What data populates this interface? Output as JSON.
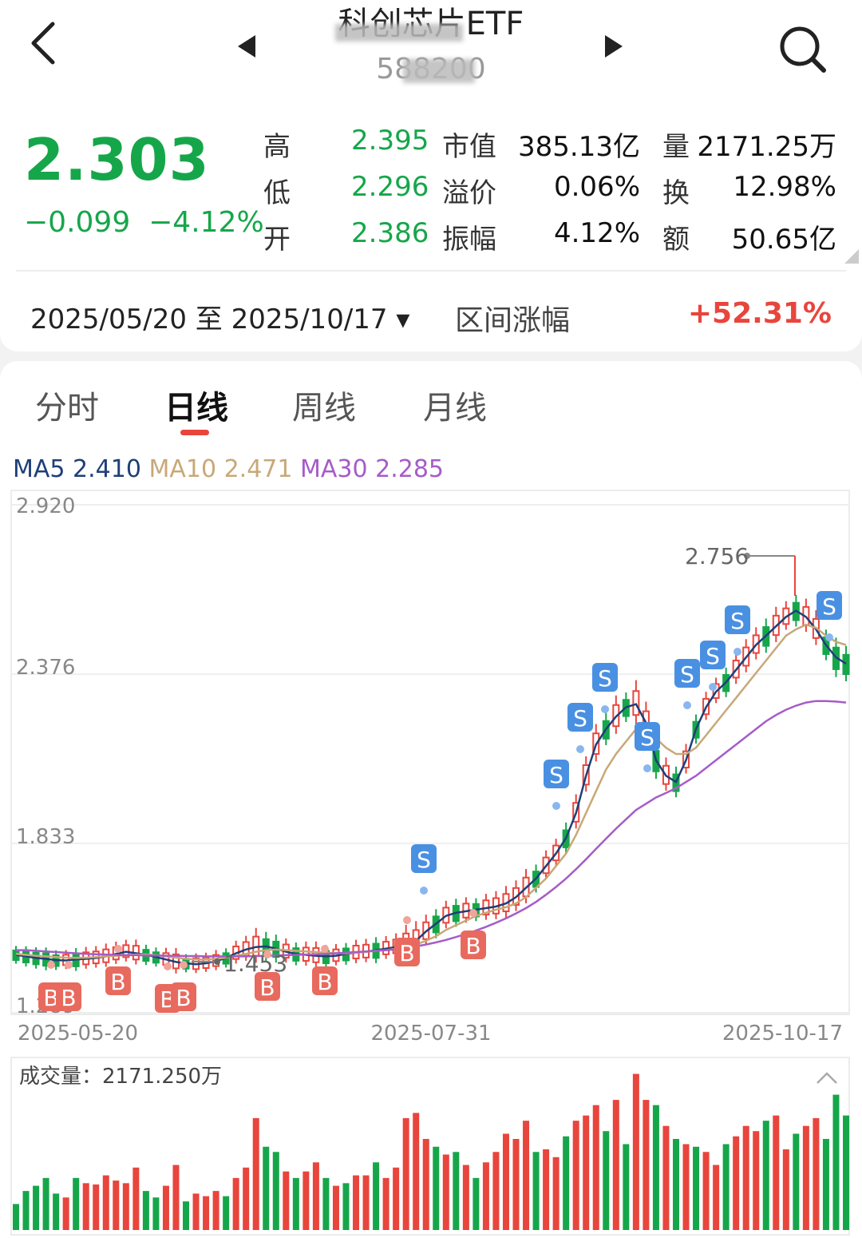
{
  "header": {
    "title": "科创芯片ETF",
    "code": "588200"
  },
  "quote": {
    "price": "2.303",
    "change": "−0.099",
    "change_pct": "−4.12%",
    "rows": [
      {
        "label": "高",
        "value": "2.395",
        "label2": "市值",
        "value2": "385.13亿",
        "label3": "量",
        "value3": "2171.25万"
      },
      {
        "label": "低",
        "value": "2.296",
        "label2": "溢价",
        "value2": "0.06%",
        "label3": "换",
        "value3": "12.98%"
      },
      {
        "label": "开",
        "value": "2.386",
        "label2": "振幅",
        "value2": "4.12%",
        "label3": "额",
        "value3": "50.65亿"
      }
    ]
  },
  "range": {
    "dates": "2025/05/20 至 2025/10/17",
    "dropdown": "▾",
    "label": "区间涨幅",
    "value": "+52.31%"
  },
  "tabs": [
    "分时",
    "日线",
    "周线",
    "月线"
  ],
  "active_tab": "日线",
  "ma": {
    "ma5": "MA5 2.410",
    "ma10": "MA10 2.471",
    "ma30": "MA30 2.285"
  },
  "colors": {
    "up": "#e8453c",
    "down": "#16a64a",
    "ma5": "#1e3f78",
    "ma10": "#c8a878",
    "ma30": "#a65cc8",
    "signal_s": "#4a90e2",
    "signal_b": "#e86a5e"
  },
  "chart_data": [
    {
      "type": "candlestick",
      "y_ticks": [
        "2.920",
        "2.376",
        "1.833",
        "1.289"
      ],
      "ylim": [
        1.289,
        2.92
      ],
      "x_ticks": [
        "2025-05-20",
        "2025-07-31",
        "2025-10-17"
      ],
      "annotations": {
        "high": "2.756",
        "low": "1.453"
      },
      "signal_labels": {
        "buy": "B",
        "sell": "S"
      },
      "series": [
        {
          "name": "MA5",
          "values": [
            1.475,
            1.47,
            1.465,
            1.462,
            1.458,
            1.457,
            1.46,
            1.462,
            1.465,
            1.47,
            1.478,
            1.485,
            1.48,
            1.475,
            1.468,
            1.46,
            1.452,
            1.448,
            1.445,
            1.448,
            1.455,
            1.465,
            1.48,
            1.492,
            1.5,
            1.502,
            1.495,
            1.485,
            1.478,
            1.475,
            1.472,
            1.47,
            1.472,
            1.478,
            1.482,
            1.485,
            1.49,
            1.495,
            1.5,
            1.51,
            1.52,
            1.55,
            1.575,
            1.6,
            1.61,
            1.615,
            1.62,
            1.625,
            1.63,
            1.64,
            1.66,
            1.69,
            1.72,
            1.76,
            1.8,
            1.85,
            1.93,
            2.05,
            2.15,
            2.2,
            2.24,
            2.27,
            2.28,
            2.22,
            2.1,
            2.05,
            2.03,
            2.1,
            2.2,
            2.27,
            2.32,
            2.35,
            2.39,
            2.43,
            2.47,
            2.5,
            2.53,
            2.56,
            2.58,
            2.56,
            2.52,
            2.47,
            2.43,
            2.41
          ]
        },
        {
          "name": "MA10",
          "values": [
            1.478,
            1.475,
            1.472,
            1.47,
            1.468,
            1.466,
            1.465,
            1.466,
            1.468,
            1.47,
            1.472,
            1.474,
            1.476,
            1.476,
            1.474,
            1.47,
            1.466,
            1.462,
            1.46,
            1.46,
            1.462,
            1.466,
            1.472,
            1.478,
            1.485,
            1.49,
            1.492,
            1.49,
            1.488,
            1.486,
            1.484,
            1.482,
            1.48,
            1.48,
            1.482,
            1.485,
            1.488,
            1.49,
            1.495,
            1.5,
            1.508,
            1.52,
            1.535,
            1.555,
            1.57,
            1.585,
            1.6,
            1.61,
            1.62,
            1.628,
            1.64,
            1.66,
            1.69,
            1.72,
            1.76,
            1.8,
            1.86,
            1.93,
            2.0,
            2.07,
            2.12,
            2.16,
            2.2,
            2.2,
            2.17,
            2.14,
            2.12,
            2.12,
            2.14,
            2.18,
            2.22,
            2.26,
            2.3,
            2.34,
            2.38,
            2.42,
            2.46,
            2.5,
            2.52,
            2.535,
            2.525,
            2.5,
            2.48,
            2.47
          ]
        },
        {
          "name": "MA30",
          "values": [
            1.49,
            1.49,
            1.488,
            1.486,
            1.484,
            1.482,
            1.48,
            1.478,
            1.477,
            1.476,
            1.475,
            1.474,
            1.474,
            1.473,
            1.473,
            1.472,
            1.472,
            1.471,
            1.471,
            1.47,
            1.47,
            1.47,
            1.47,
            1.47,
            1.471,
            1.472,
            1.473,
            1.474,
            1.475,
            1.476,
            1.477,
            1.478,
            1.48,
            1.482,
            1.484,
            1.486,
            1.488,
            1.49,
            1.493,
            1.497,
            1.502,
            1.508,
            1.515,
            1.523,
            1.532,
            1.542,
            1.553,
            1.565,
            1.578,
            1.592,
            1.608,
            1.625,
            1.645,
            1.668,
            1.693,
            1.72,
            1.75,
            1.782,
            1.815,
            1.848,
            1.88,
            1.91,
            1.94,
            1.96,
            1.98,
            1.995,
            2.01,
            2.03,
            2.05,
            2.075,
            2.1,
            2.125,
            2.15,
            2.175,
            2.2,
            2.225,
            2.245,
            2.262,
            2.275,
            2.285,
            2.29,
            2.29,
            2.288,
            2.285
          ]
        }
      ]
    },
    {
      "type": "bar",
      "title": "成交量：2171.250万",
      "values": [
        20,
        30,
        34,
        40,
        28,
        25,
        40,
        36,
        35,
        42,
        38,
        36,
        48,
        30,
        25,
        34,
        50,
        22,
        28,
        26,
        30,
        26,
        40,
        48,
        86,
        64,
        60,
        45,
        40,
        45,
        52,
        40,
        34,
        36,
        42,
        42,
        52,
        40,
        48,
        86,
        90,
        70,
        64,
        58,
        60,
        50,
        40,
        52,
        60,
        74,
        70,
        84,
        60,
        62,
        56,
        72,
        84,
        88,
        96,
        76,
        100,
        66,
        120,
        100,
        96,
        80,
        70,
        66,
        64,
        60,
        50,
        66,
        72,
        80,
        76,
        84,
        88,
        62,
        74,
        80,
        86,
        70,
        104,
        88
      ],
      "colors": [
        "down",
        "down",
        "down",
        "down",
        "down",
        "up",
        "down",
        "up",
        "up",
        "up",
        "up",
        "up",
        "up",
        "down",
        "down",
        "up",
        "up",
        "down",
        "up",
        "up",
        "up",
        "down",
        "up",
        "up",
        "up",
        "down",
        "down",
        "up",
        "down",
        "up",
        "up",
        "down",
        "up",
        "down",
        "up",
        "up",
        "down",
        "up",
        "up",
        "up",
        "up",
        "up",
        "down",
        "up",
        "down",
        "up",
        "down",
        "up",
        "up",
        "up",
        "up",
        "up",
        "down",
        "up",
        "up",
        "down",
        "up",
        "up",
        "up",
        "down",
        "up",
        "down",
        "up",
        "up",
        "down",
        "up",
        "down",
        "up",
        "down",
        "up",
        "up",
        "down",
        "up",
        "up",
        "up",
        "down",
        "up",
        "up",
        "down",
        "up",
        "up",
        "down",
        "down",
        "down"
      ]
    }
  ]
}
